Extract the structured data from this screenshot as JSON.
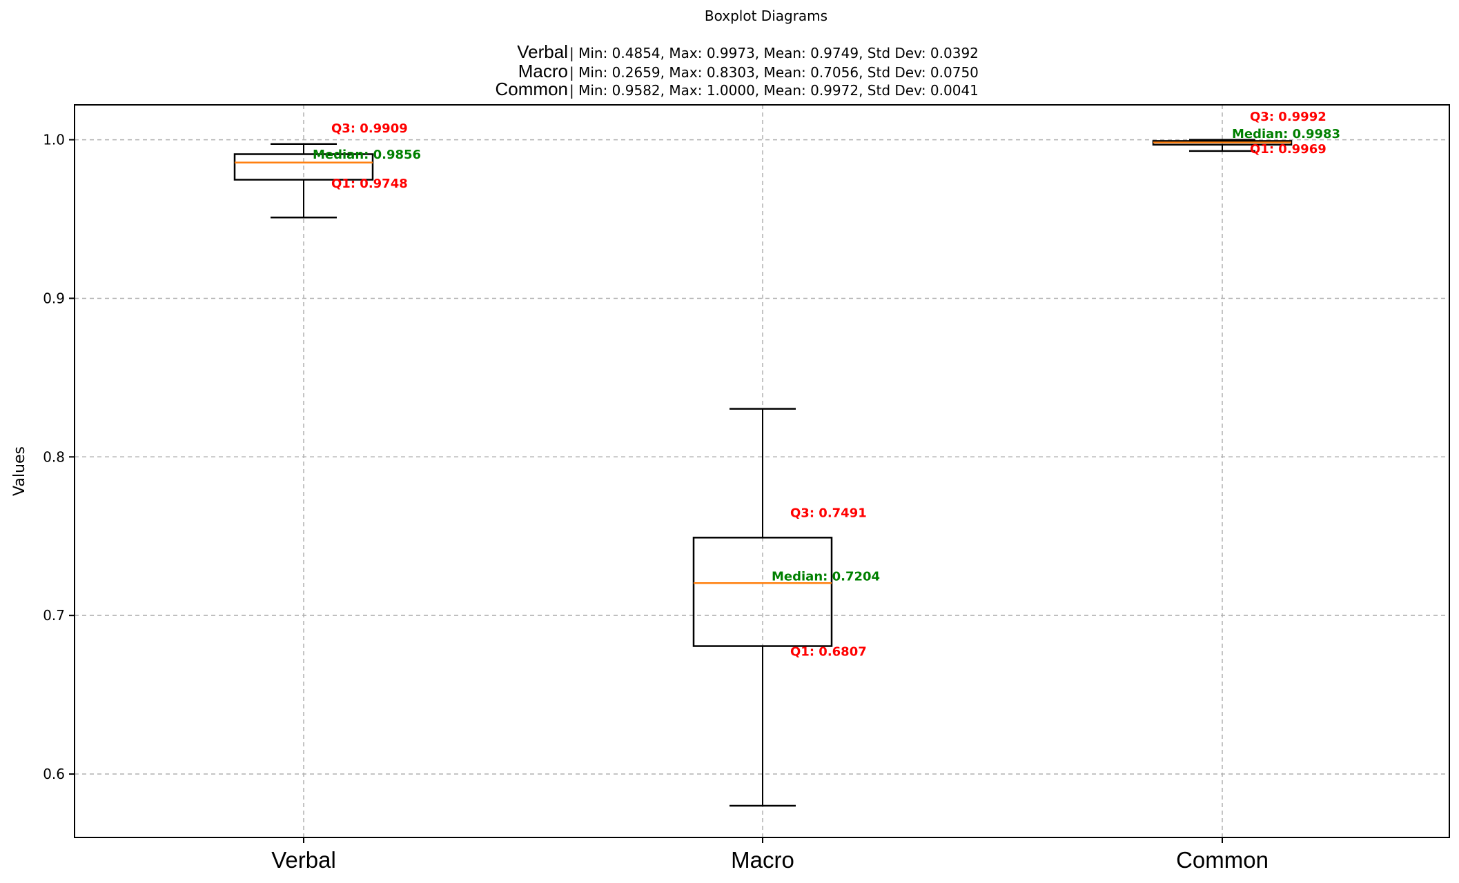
{
  "chart_data": {
    "type": "boxplot",
    "title": "Boxplot Diagrams",
    "ylabel": "Values",
    "xlabel": "",
    "ylim": [
      0.56,
      1.022
    ],
    "yticks": [
      0.6,
      0.7,
      0.8,
      0.9,
      1.0
    ],
    "ytick_labels": [
      "0.6",
      "0.7",
      "0.8",
      "0.9",
      "1.0"
    ],
    "grid": true,
    "categories": [
      "Verbal",
      "Macro",
      "Common"
    ],
    "stats_lines": [
      {
        "name": "Verbal",
        "text": "| Min: 0.4854, Max: 0.9973, Mean: 0.9749, Std Dev: 0.0392"
      },
      {
        "name": "Macro",
        "text": "| Min: 0.2659, Max: 0.8303, Mean: 0.7056, Std Dev: 0.0750"
      },
      {
        "name": "Common",
        "text": "| Min: 0.9582, Max: 1.0000, Mean: 0.9972, Std Dev: 0.0041"
      }
    ],
    "series": [
      {
        "name": "Verbal",
        "whisker_low": 0.951,
        "q1": 0.9748,
        "median": 0.9856,
        "q3": 0.9909,
        "whisker_high": 0.9973,
        "q3_label": "Q3: 0.9909",
        "median_label": "Median: 0.9856",
        "q1_label": "Q1: 0.9748"
      },
      {
        "name": "Macro",
        "whisker_low": 0.58,
        "q1": 0.6807,
        "median": 0.7204,
        "q3": 0.7491,
        "whisker_high": 0.8303,
        "q3_label": "Q3: 0.7491",
        "median_label": "Median: 0.7204",
        "q1_label": "Q1: 0.6807"
      },
      {
        "name": "Common",
        "whisker_low": 0.9929,
        "q1": 0.9969,
        "median": 0.9983,
        "q3": 0.9992,
        "whisker_high": 1.0,
        "q3_label": "Q3: 0.9992",
        "median_label": "Median: 0.9983",
        "q1_label": "Q1: 0.9969"
      }
    ],
    "colors": {
      "box": "#000000",
      "median": "#ff7f0e",
      "q_label": "#ff0000",
      "median_label": "#008000",
      "grid": "#b0b0b0"
    }
  }
}
